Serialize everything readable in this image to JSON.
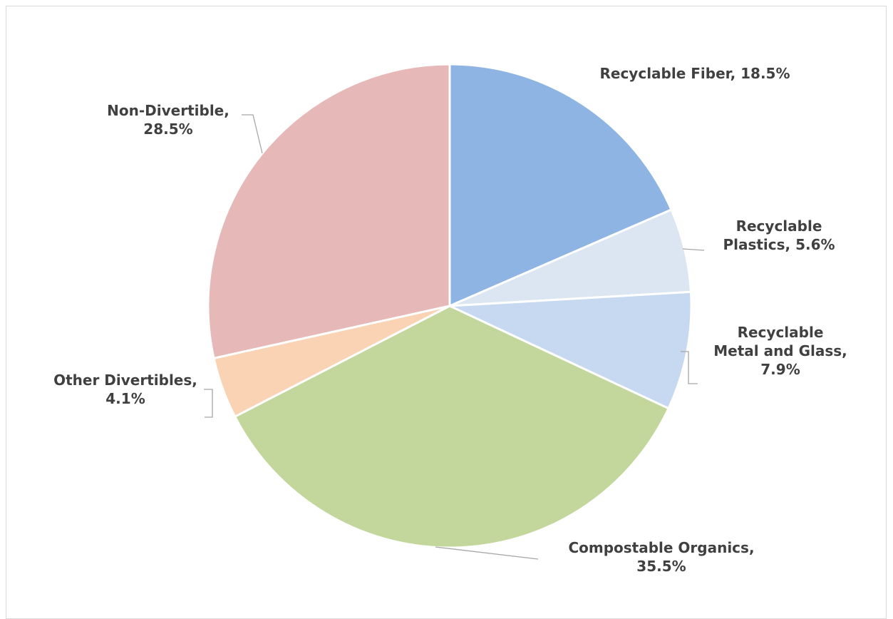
{
  "chart_data": {
    "type": "pie",
    "title": "",
    "start_angle_deg": 0,
    "direction": "clockwise",
    "slices": [
      {
        "label": "Recyclable Fiber",
        "value": 18.5,
        "value_text": "18.5%",
        "color": "#8eb4e3"
      },
      {
        "label": "Recyclable Plastics",
        "value": 5.6,
        "value_text": "5.6%",
        "color": "#dce6f2"
      },
      {
        "label": "Recyclable Metal and Glass",
        "value": 7.9,
        "value_text": "7.9%",
        "color": "#c6d9f1"
      },
      {
        "label": "Compostable Organics",
        "value": 35.5,
        "value_text": "35.5%",
        "color": "#c3d69b"
      },
      {
        "label": "Other Divertibles",
        "value": 4.1,
        "value_text": "4.1%",
        "color": "#fad2b4"
      },
      {
        "label": "Non-Divertible",
        "value": 28.5,
        "value_text": "28.5%",
        "color": "#e6b9b8"
      }
    ],
    "data_labels": [
      {
        "lines": [
          "Recyclable Fiber, 18.5%"
        ]
      },
      {
        "lines": [
          "Recyclable",
          "Plastics, 5.6%"
        ]
      },
      {
        "lines": [
          "Recyclable",
          "Metal and Glass,",
          "7.9%"
        ]
      },
      {
        "lines": [
          "Compostable Organics,",
          "35.5%"
        ]
      },
      {
        "lines": [
          "Other Divertibles,",
          "4.1%"
        ]
      },
      {
        "lines": [
          "Non-Divertible,",
          "28.5%"
        ]
      }
    ],
    "legend": "none",
    "slice_border_color": "#ffffff",
    "leader_line_color": "#a6a6a6",
    "label_color": "#404040"
  }
}
